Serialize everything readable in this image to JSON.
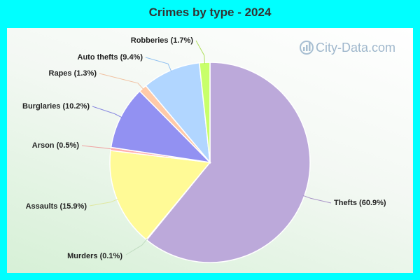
{
  "chart_data": {
    "type": "pie",
    "title": "Crimes by type - 2024",
    "slices": [
      {
        "label": "Thefts (60.9%)",
        "value": 60.9,
        "color": "#bca9da",
        "leader": "#a995c8"
      },
      {
        "label": "Murders (0.1%)",
        "value": 0.1,
        "color": "#ffe0e0",
        "leader": "#c0dcc0"
      },
      {
        "label": "Assaults (15.9%)",
        "value": 15.9,
        "color": "#fffa96",
        "leader": "#e0e8a0"
      },
      {
        "label": "Arson (0.5%)",
        "value": 0.5,
        "color": "#ffb0b0",
        "leader": "#f0a0a0"
      },
      {
        "label": "Burglaries (10.2%)",
        "value": 10.2,
        "color": "#9291f2",
        "leader": "#8888e0"
      },
      {
        "label": "Rapes (1.3%)",
        "value": 1.3,
        "color": "#ffcaa8",
        "leader": "#f0c0a0"
      },
      {
        "label": "Auto thefts (9.4%)",
        "value": 9.4,
        "color": "#b1d6ff",
        "leader": "#90c0f0"
      },
      {
        "label": "Robberies (1.7%)",
        "value": 1.7,
        "color": "#c8ff6a",
        "leader": "#b0e060"
      }
    ]
  },
  "watermark": "City-Data.com"
}
